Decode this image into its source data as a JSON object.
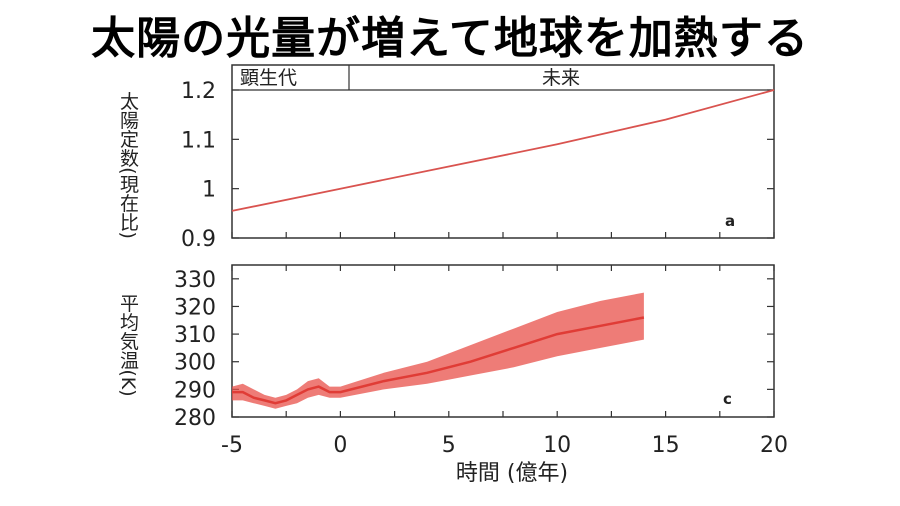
{
  "title": "太陽の光量が増えて地球を加熱する",
  "chart_data": [
    {
      "type": "line",
      "panel_label": "a",
      "era_labels": [
        "顕生代",
        "未来"
      ],
      "ylabel": "太陽定数(現在比)",
      "xlim": [
        -5,
        20
      ],
      "ylim": [
        0.9,
        1.2
      ],
      "yticks": [
        "0.9",
        "1",
        "1.1",
        "1.2"
      ],
      "series": [
        {
          "x": [
            -5,
            0,
            5,
            10,
            15,
            20
          ],
          "y": [
            0.955,
            1.0,
            1.045,
            1.09,
            1.14,
            1.2
          ]
        }
      ],
      "color": "#d9534f"
    },
    {
      "type": "area",
      "panel_label": "c",
      "ylabel": "平均気温(K)",
      "xlabel": "時間 (億年)",
      "xlim": [
        -5,
        20
      ],
      "ylim": [
        280,
        335
      ],
      "yticks": [
        "280",
        "290",
        "300",
        "310",
        "320",
        "330"
      ],
      "xticks": [
        "-5",
        "0",
        "5",
        "10",
        "15",
        "20"
      ],
      "series": [
        {
          "x": [
            -5,
            -4.5,
            -4,
            -3.5,
            -3,
            -2.5,
            -2,
            -1.5,
            -1,
            -0.5,
            0,
            2,
            4,
            6,
            8,
            10,
            12,
            14
          ],
          "lower": [
            286,
            286,
            285,
            284,
            283,
            284,
            285,
            287,
            288,
            287,
            287,
            290,
            292,
            295,
            298,
            302,
            305,
            308
          ],
          "upper": [
            291,
            292,
            290,
            288,
            287,
            288,
            290,
            293,
            294,
            291,
            291,
            296,
            300,
            306,
            312,
            318,
            322,
            325
          ],
          "mid": [
            289,
            289,
            287,
            286,
            285,
            286,
            288,
            290,
            291,
            289,
            289,
            293,
            296,
            300,
            305,
            310,
            313,
            316
          ]
        }
      ],
      "color": "#e8504a"
    }
  ]
}
